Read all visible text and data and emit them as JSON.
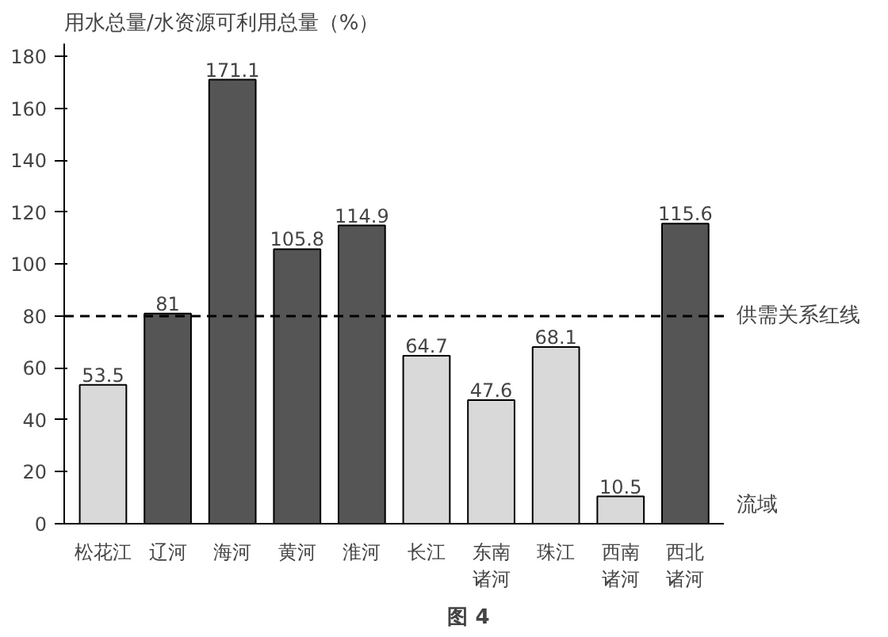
{
  "chart_data": {
    "type": "bar",
    "ylabel": "用水总量/水资源可利用总量（%）",
    "xlabel": "流域",
    "categories": [
      "松花江",
      "辽河",
      "海河",
      "黄河",
      "淮河",
      "长江",
      "东南诸河",
      "珠江",
      "西南诸河",
      "西北诸河"
    ],
    "values": [
      53.5,
      81,
      171.1,
      105.8,
      114.9,
      64.7,
      47.6,
      68.1,
      10.5,
      115.6
    ],
    "colors": [
      "#d9d9d9",
      "#555555",
      "#555555",
      "#555555",
      "#555555",
      "#d9d9d9",
      "#d9d9d9",
      "#d9d9d9",
      "#d9d9d9",
      "#555555"
    ],
    "ylim": [
      0,
      185
    ],
    "yticks": [
      0,
      20,
      40,
      60,
      80,
      100,
      120,
      140,
      160,
      180
    ],
    "ref_lines": [
      {
        "axis": "y",
        "value": 80,
        "label": "供需关系红线",
        "color": "#000000",
        "line_style": "dashed"
      }
    ],
    "data_labels": true,
    "grid": false,
    "annotations": [
      "图 4"
    ]
  }
}
